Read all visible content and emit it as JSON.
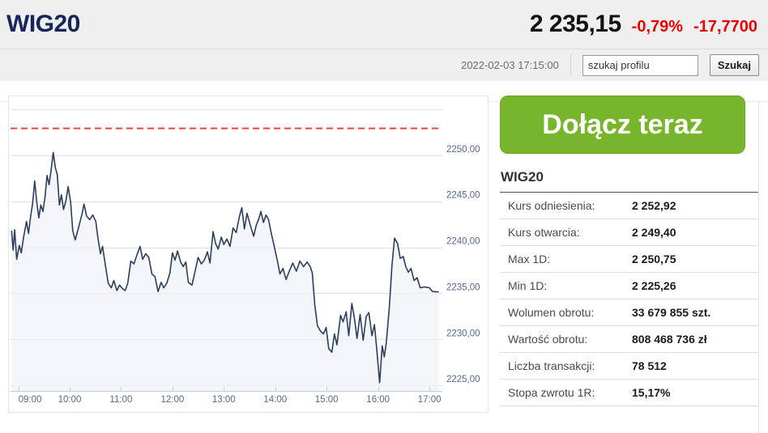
{
  "header": {
    "title": "WIG20",
    "price": "2 235,15",
    "change_percent": "-0,79%",
    "change_value": "-17,7700",
    "change_color": "#e60000",
    "title_color": "#18255a",
    "timestamp": "2022-02-03 17:15:00",
    "search_value": "szukaj profilu",
    "search_button": "Szukaj"
  },
  "cta": {
    "label": "Dołącz teraz",
    "color": "#77b52b"
  },
  "stats": {
    "title": "WIG20",
    "rows": [
      {
        "label": "Kurs odniesienia:",
        "value": "2 252,92"
      },
      {
        "label": "Kurs otwarcia:",
        "value": "2 249,40"
      },
      {
        "label": "Max 1D:",
        "value": "2 250,75"
      },
      {
        "label": "Min 1D:",
        "value": "2 225,26"
      },
      {
        "label": "Wolumen obrotu:",
        "value": "33 679 855 szt."
      },
      {
        "label": "Wartość obrotu:",
        "value": "808 468 736 zł"
      },
      {
        "label": "Liczba transakcji:",
        "value": "78 512"
      },
      {
        "label": "Stopa zwrotu 1R:",
        "value": "15,17%"
      }
    ]
  },
  "chart_data": {
    "type": "area",
    "title": "WIG20 intraday",
    "xlim": [
      8.85,
      17.25
    ],
    "ylim": [
      2224.4,
      2256.4
    ],
    "grid": true,
    "line_color": "#2c3e5f",
    "fill_color": "#eef1f5",
    "grid_color": "#e2e2e2",
    "axis_color": "#c8cfd8",
    "label_color": "#56688a",
    "reference_line": {
      "value": 2252.92,
      "color": "#f4433a",
      "style": "dashed"
    },
    "y_gridlines": [
      2255,
      2250,
      2245,
      2240,
      2235,
      2230,
      2225
    ],
    "y_labels": [
      {
        "value": 2250,
        "text": "2250,00"
      },
      {
        "value": 2245,
        "text": "2245,00"
      },
      {
        "value": 2240,
        "text": "2240,00"
      },
      {
        "value": 2235,
        "text": "2235,00"
      },
      {
        "value": 2230,
        "text": "2230,00"
      },
      {
        "value": 2225,
        "text": "2225,00"
      }
    ],
    "x_labels": [
      {
        "hour": 9,
        "text": "09:00"
      },
      {
        "hour": 10,
        "text": "10:00"
      },
      {
        "hour": 11,
        "text": "11:00"
      },
      {
        "hour": 12,
        "text": "12:00"
      },
      {
        "hour": 13,
        "text": "13:00"
      },
      {
        "hour": 14,
        "text": "14:00"
      },
      {
        "hour": 15,
        "text": "15:00"
      },
      {
        "hour": 16,
        "text": "16:00"
      },
      {
        "hour": 17,
        "text": "17:00"
      }
    ],
    "series": [
      {
        "name": "WIG20",
        "points": [
          [
            8.87,
            2241.8
          ],
          [
            8.9,
            2239.7
          ],
          [
            8.93,
            2241.9
          ],
          [
            8.97,
            2238.7
          ],
          [
            9.02,
            2240.2
          ],
          [
            9.06,
            2239.4
          ],
          [
            9.1,
            2241.0
          ],
          [
            9.16,
            2242.8
          ],
          [
            9.2,
            2241.5
          ],
          [
            9.24,
            2243.3
          ],
          [
            9.28,
            2244.8
          ],
          [
            9.32,
            2247.2
          ],
          [
            9.36,
            2244.9
          ],
          [
            9.4,
            2243.2
          ],
          [
            9.44,
            2244.6
          ],
          [
            9.48,
            2243.9
          ],
          [
            9.52,
            2245.4
          ],
          [
            9.56,
            2247.8
          ],
          [
            9.6,
            2246.8
          ],
          [
            9.64,
            2248.4
          ],
          [
            9.68,
            2250.3
          ],
          [
            9.72,
            2248.7
          ],
          [
            9.76,
            2247.9
          ],
          [
            9.8,
            2244.6
          ],
          [
            9.84,
            2245.7
          ],
          [
            9.88,
            2244.1
          ],
          [
            9.93,
            2245.1
          ],
          [
            9.97,
            2246.6
          ],
          [
            10.02,
            2244.9
          ],
          [
            10.06,
            2241.8
          ],
          [
            10.11,
            2240.8
          ],
          [
            10.18,
            2242.3
          ],
          [
            10.24,
            2243.6
          ],
          [
            10.28,
            2244.7
          ],
          [
            10.33,
            2243.4
          ],
          [
            10.39,
            2243.0
          ],
          [
            10.45,
            2243.5
          ],
          [
            10.51,
            2242.8
          ],
          [
            10.55,
            2241.0
          ],
          [
            10.6,
            2239.3
          ],
          [
            10.64,
            2240.1
          ],
          [
            10.69,
            2238.2
          ],
          [
            10.75,
            2236.1
          ],
          [
            10.81,
            2235.6
          ],
          [
            10.86,
            2236.4
          ],
          [
            10.92,
            2235.3
          ],
          [
            10.97,
            2235.9
          ],
          [
            11.03,
            2235.5
          ],
          [
            11.08,
            2235.3
          ],
          [
            11.13,
            2236.1
          ],
          [
            11.19,
            2238.5
          ],
          [
            11.25,
            2238.2
          ],
          [
            11.31,
            2239.2
          ],
          [
            11.37,
            2240.1
          ],
          [
            11.42,
            2238.7
          ],
          [
            11.48,
            2239.3
          ],
          [
            11.54,
            2238.9
          ],
          [
            11.6,
            2237.1
          ],
          [
            11.66,
            2236.8
          ],
          [
            11.72,
            2235.2
          ],
          [
            11.78,
            2236.2
          ],
          [
            11.83,
            2235.6
          ],
          [
            11.89,
            2236.1
          ],
          [
            11.95,
            2237.2
          ],
          [
            12.0,
            2239.4
          ],
          [
            12.05,
            2238.6
          ],
          [
            12.1,
            2239.6
          ],
          [
            12.16,
            2238.4
          ],
          [
            12.21,
            2237.9
          ],
          [
            12.26,
            2238.4
          ],
          [
            12.31,
            2236.2
          ],
          [
            12.38,
            2235.9
          ],
          [
            12.44,
            2237.4
          ],
          [
            12.5,
            2238.9
          ],
          [
            12.56,
            2238.2
          ],
          [
            12.62,
            2238.6
          ],
          [
            12.68,
            2239.5
          ],
          [
            12.73,
            2238.3
          ],
          [
            12.79,
            2241.7
          ],
          [
            12.84,
            2240.4
          ],
          [
            12.89,
            2239.8
          ],
          [
            12.95,
            2241.1
          ],
          [
            13.0,
            2240.3
          ],
          [
            13.06,
            2240.9
          ],
          [
            13.12,
            2240.1
          ],
          [
            13.18,
            2242.1
          ],
          [
            13.24,
            2241.6
          ],
          [
            13.3,
            2243.3
          ],
          [
            13.35,
            2244.3
          ],
          [
            13.4,
            2242.0
          ],
          [
            13.45,
            2243.7
          ],
          [
            13.49,
            2242.9
          ],
          [
            13.54,
            2241.9
          ],
          [
            13.58,
            2241.2
          ],
          [
            13.63,
            2242.4
          ],
          [
            13.68,
            2243.1
          ],
          [
            13.72,
            2243.9
          ],
          [
            13.77,
            2242.7
          ],
          [
            13.82,
            2243.5
          ],
          [
            13.87,
            2243.0
          ],
          [
            13.92,
            2241.6
          ],
          [
            13.98,
            2240.1
          ],
          [
            14.04,
            2238.6
          ],
          [
            14.09,
            2237.1
          ],
          [
            14.15,
            2237.7
          ],
          [
            14.21,
            2236.5
          ],
          [
            14.28,
            2237.5
          ],
          [
            14.34,
            2238.3
          ],
          [
            14.41,
            2237.4
          ],
          [
            14.48,
            2238.5
          ],
          [
            14.55,
            2237.9
          ],
          [
            14.62,
            2238.4
          ],
          [
            14.68,
            2237.9
          ],
          [
            14.72,
            2237.2
          ],
          [
            14.77,
            2233.7
          ],
          [
            14.82,
            2231.5
          ],
          [
            14.88,
            2230.9
          ],
          [
            14.94,
            2230.6
          ],
          [
            14.99,
            2231.3
          ],
          [
            15.04,
            2229.0
          ],
          [
            15.1,
            2228.6
          ],
          [
            15.15,
            2230.6
          ],
          [
            15.2,
            2229.4
          ],
          [
            15.27,
            2232.6
          ],
          [
            15.32,
            2231.9
          ],
          [
            15.38,
            2233.0
          ],
          [
            15.43,
            2230.4
          ],
          [
            15.49,
            2233.9
          ],
          [
            15.54,
            2232.3
          ],
          [
            15.59,
            2230.1
          ],
          [
            15.65,
            2232.7
          ],
          [
            15.71,
            2229.9
          ],
          [
            15.77,
            2232.5
          ],
          [
            15.82,
            2232.9
          ],
          [
            15.88,
            2230.4
          ],
          [
            15.93,
            2231.6
          ],
          [
            15.98,
            2228.6
          ],
          [
            16.03,
            2225.3
          ],
          [
            16.08,
            2229.3
          ],
          [
            16.12,
            2228.1
          ],
          [
            16.16,
            2229.6
          ],
          [
            16.22,
            2233.5
          ],
          [
            16.27,
            2238.0
          ],
          [
            16.32,
            2241.0
          ],
          [
            16.38,
            2240.4
          ],
          [
            16.43,
            2238.8
          ],
          [
            16.49,
            2239.0
          ],
          [
            16.54,
            2237.9
          ],
          [
            16.59,
            2237.3
          ],
          [
            16.64,
            2237.7
          ],
          [
            16.7,
            2236.4
          ],
          [
            16.76,
            2236.7
          ],
          [
            16.82,
            2235.6
          ],
          [
            16.9,
            2235.7
          ],
          [
            17.0,
            2235.6
          ],
          [
            17.06,
            2235.2
          ],
          [
            17.18,
            2235.15
          ]
        ]
      }
    ]
  }
}
